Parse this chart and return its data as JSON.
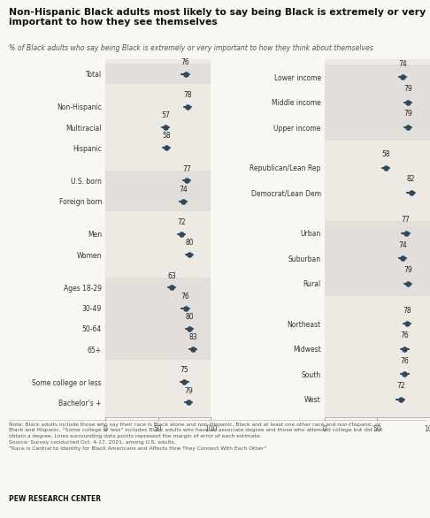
{
  "title": "Non-Hispanic Black adults most likely to say being Black is extremely or very\nimportant to how they see themselves",
  "subtitle": "% of Black adults who say being Black is extremely or very important to how they think about themselves",
  "left_categories": [
    "Total",
    "Non-Hispanic",
    "Multiracial",
    "Hispanic",
    "U.S. born",
    "Foreign born",
    "Men",
    "Women",
    "Ages 18-29",
    "30-49",
    "50-64",
    "65+",
    "Some college or less",
    "Bachelor's +"
  ],
  "left_values": [
    76,
    78,
    57,
    58,
    77,
    74,
    72,
    80,
    63,
    76,
    80,
    83,
    75,
    79
  ],
  "left_groups": [
    0,
    1,
    1,
    1,
    2,
    2,
    3,
    3,
    4,
    4,
    4,
    4,
    5,
    5
  ],
  "right_categories": [
    "Lower income",
    "Middle income",
    "Upper income",
    "Republican/Lean Rep",
    "Democrat/Lean Dem",
    "Urban",
    "Suburban",
    "Rural",
    "Northeast",
    "Midwest",
    "South",
    "West"
  ],
  "right_values": [
    74,
    79,
    79,
    58,
    82,
    77,
    74,
    79,
    78,
    76,
    76,
    72
  ],
  "right_groups": [
    0,
    0,
    0,
    1,
    1,
    2,
    2,
    2,
    3,
    3,
    3,
    3
  ],
  "dot_color": "#2d4a5e",
  "bg_color": "#edeae4",
  "fig_bg": "#f9f7f4",
  "note_text": "Note: Black adults include those who say their race is Black alone and non-Hispanic, Black and at least one other race and non-Hispanic, or\nBlack and Hispanic. \"Some college or less\" includes Black adults who have an associate degree and those who attended college but did not\nobtain a degree. Lines surrounding data points represent the margin of error of each estimate.\nSource: Survey conducted Oct. 4-17, 2021, among U.S. adults.\n\"Race is Central to Identity for Black Americans and Affects How They Connect With Each Other\"",
  "pew_label": "PEW RESEARCH CENTER",
  "error_half_width": 3.5
}
